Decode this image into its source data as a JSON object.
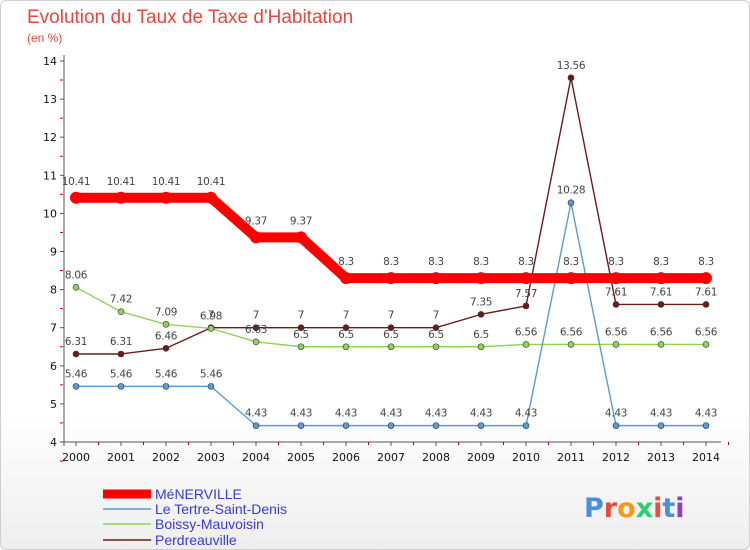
{
  "title": "Evolution du Taux de Taxe d'Habitation",
  "subtitle": "(en %)",
  "logo_text": "Proxiti",
  "logo_colors": [
    "#4a90d9",
    "#e74c3c",
    "#f39c12",
    "#2ecc71",
    "#e74c3c",
    "#4a90d9",
    "#8e44ad"
  ],
  "chart_data": {
    "type": "line",
    "title": "Evolution du Taux de Taxe d'Habitation",
    "subtitle": "(en %)",
    "xlabel": "",
    "ylabel": "",
    "x": [
      "2000",
      "2001",
      "2002",
      "2003",
      "2004",
      "2005",
      "2006",
      "2007",
      "2008",
      "2009",
      "2010",
      "2011",
      "2012",
      "2013",
      "2014"
    ],
    "ylim": [
      4,
      14
    ],
    "yticks": [
      "4",
      "5",
      "6",
      "7",
      "8",
      "9",
      "10",
      "11",
      "12",
      "13",
      "14"
    ],
    "grid": false,
    "legend_position": "bottom-left",
    "series": [
      {
        "name": "MéNERVILLE",
        "color": "#ff0000",
        "values": [
          10.41,
          10.41,
          10.41,
          10.41,
          9.37,
          9.37,
          8.3,
          8.3,
          8.3,
          8.3,
          8.3,
          8.3,
          8.3,
          8.3,
          8.3
        ],
        "labels": [
          "10.41",
          "10.41",
          "10.41",
          "10.41",
          "9.37",
          "9.37",
          "8.3",
          "8.3",
          "8.3",
          "8.3",
          "8.3",
          "8.3",
          "8.3",
          "8.3",
          "8.3"
        ]
      },
      {
        "name": "Le Tertre-Saint-Denis",
        "color": "#5b9bd5",
        "values": [
          5.46,
          5.46,
          5.46,
          5.46,
          4.43,
          4.43,
          4.43,
          4.43,
          4.43,
          4.43,
          4.43,
          10.28,
          4.43,
          4.43,
          4.43
        ],
        "labels": [
          "5.46",
          "5.46",
          "5.46",
          "5.46",
          "4.43",
          "4.43",
          "4.43",
          "4.43",
          "4.43",
          "4.43",
          "4.43",
          "10.28",
          "4.43",
          "4.43",
          "4.43"
        ]
      },
      {
        "name": "Boissy-Mauvoisin",
        "color": "#8fd45a",
        "values": [
          8.06,
          7.42,
          7.09,
          6.98,
          6.63,
          6.5,
          6.5,
          6.5,
          6.5,
          6.5,
          6.56,
          6.56,
          6.56,
          6.56,
          6.56
        ],
        "labels": [
          "8.06",
          "7.42",
          "7.09",
          "6.98",
          "6.63",
          "6.5",
          "6.5",
          "6.5",
          "6.5",
          "6.5",
          "6.56",
          "6.56",
          "6.56",
          "6.56",
          "6.56"
        ]
      },
      {
        "name": "Perdreauville",
        "color": "#6b1b1b",
        "values": [
          6.31,
          6.31,
          6.46,
          7,
          7,
          7,
          7,
          7,
          7,
          7.35,
          7.57,
          13.56,
          7.61,
          7.61,
          7.61
        ],
        "labels": [
          "6.31",
          "6.31",
          "6.46",
          "7",
          "7",
          "7",
          "7",
          "7",
          "7",
          "7.35",
          "7.57",
          "13.56",
          "7.61",
          "7.61",
          "7.61"
        ]
      }
    ]
  }
}
